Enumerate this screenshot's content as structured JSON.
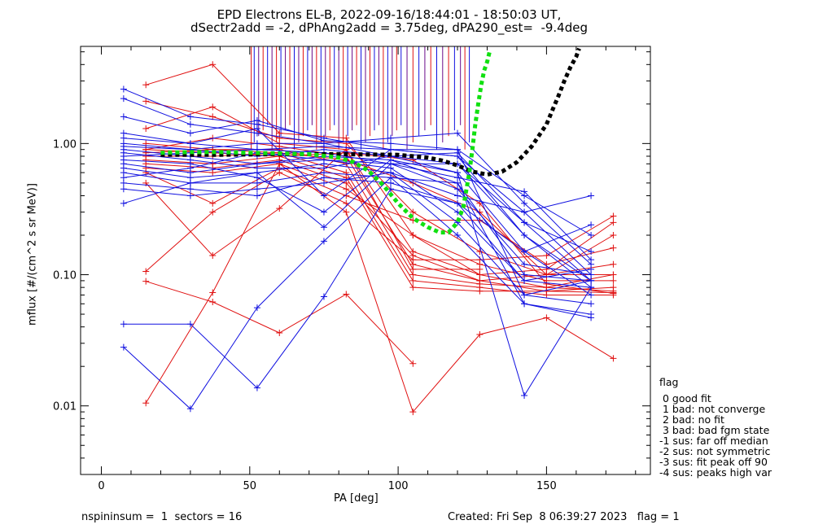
{
  "title_line1": "EPD Electrons EL-B, 2022-09-16/18:44:01 - 18:50:03 UT,",
  "title_line2": "dSectr2add = -2, dPhAng2add = 3.75deg, dPA290_est=  -9.4deg",
  "footer": {
    "left": "nspininsum =  1  sectors = 16",
    "right": "Created: Fri Sep  8 06:39:27 2023   flag = 1"
  },
  "legend": {
    "title": "flag",
    "items": [
      " 0 good fit",
      " 1 bad: not converge",
      " 2 bad: no fit",
      " 3 bad: bad fgm state",
      "-1 sus: far off median",
      "-2 sus: not symmetric",
      "-3 sus: fit peak off 90",
      "-4 sus: peaks high var"
    ]
  },
  "colors": {
    "blue": "#1010e0",
    "red": "#e01010",
    "green": "#10e010",
    "black": "#000000",
    "purple": "#6a0a8a"
  },
  "chart_data": {
    "type": "line",
    "xlabel": "PA [deg]",
    "ylabel": "mflux [#/(cm^2 s sr MeV)]",
    "xlim": [
      -7,
      185
    ],
    "ylim": [
      0.003,
      5.5
    ],
    "y_scale": "log",
    "xticks": [
      0,
      50,
      100,
      150
    ],
    "yticks": [
      0.01,
      0.1,
      1.0
    ],
    "ytick_labels": [
      "0.01",
      "0.10",
      "1.00"
    ],
    "pa_blue": [
      7.5,
      30,
      52.5,
      75,
      97.5,
      120,
      142.5,
      165
    ],
    "pa_red": [
      15,
      37.5,
      60,
      82.5,
      105,
      127.5,
      150,
      172.5
    ],
    "series_blue": [
      [
        2.6,
        1.6,
        1.4,
        1.1,
        0.9,
        0.8,
        0.3,
        0.1
      ],
      [
        2.2,
        1.4,
        1.2,
        1.0,
        0.8,
        0.7,
        0.25,
        0.09
      ],
      [
        1.6,
        1.2,
        1.5,
        1.05,
        1.0,
        0.9,
        0.4,
        0.2
      ],
      [
        1.2,
        1.0,
        0.9,
        0.95,
        0.9,
        0.8,
        0.2,
        0.08
      ],
      [
        1.0,
        0.9,
        0.8,
        0.9,
        0.8,
        0.6,
        0.15,
        0.07
      ],
      [
        0.9,
        0.8,
        0.7,
        0.8,
        0.75,
        0.5,
        0.1,
        0.09
      ],
      [
        0.8,
        0.85,
        0.9,
        0.85,
        0.7,
        0.45,
        0.12,
        0.1
      ],
      [
        0.7,
        0.6,
        0.7,
        0.75,
        0.65,
        0.3,
        0.09,
        0.08
      ],
      [
        0.65,
        0.55,
        0.6,
        0.7,
        0.6,
        0.25,
        0.07,
        0.06
      ],
      [
        0.6,
        0.5,
        0.5,
        0.6,
        0.55,
        0.2,
        0.06,
        0.05
      ],
      [
        0.5,
        0.45,
        0.4,
        0.55,
        0.5,
        0.35,
        0.15,
        0.24
      ],
      [
        0.45,
        0.4,
        0.45,
        0.5,
        0.6,
        0.4,
        0.3,
        0.4
      ],
      [
        0.35,
        0.5,
        0.6,
        0.23,
        0.7,
        0.55,
        0.43,
        0.13
      ],
      [
        1.1,
        1.0,
        1.3,
        0.4,
        0.9,
        0.9,
        0.07,
        0.09
      ],
      [
        0.75,
        0.7,
        0.55,
        0.3,
        0.75,
        0.6,
        0.012,
        0.08
      ],
      [
        0.042,
        0.042,
        0.0137,
        0.068,
        0.45,
        0.35,
        0.09,
        0.11
      ],
      [
        0.028,
        0.0095,
        0.056,
        0.18,
        0.55,
        0.5,
        0.06,
        0.047
      ],
      [
        0.85,
        0.75,
        0.65,
        0.65,
        0.8,
        0.85,
        0.25,
        0.15
      ],
      [
        0.95,
        0.9,
        1.0,
        1.0,
        1.1,
        1.2,
        0.35,
        0.12
      ],
      [
        0.55,
        0.65,
        0.85,
        0.75,
        0.7,
        0.7,
        0.2,
        0.09
      ]
    ],
    "series_red": [
      [
        2.8,
        4.0,
        1.2,
        1.1,
        0.2,
        0.12,
        0.09,
        0.09
      ],
      [
        2.1,
        1.6,
        1.1,
        1.0,
        0.3,
        0.15,
        0.1,
        0.12
      ],
      [
        1.3,
        1.9,
        1.0,
        0.9,
        0.15,
        0.1,
        0.08,
        0.1
      ],
      [
        0.9,
        1.1,
        0.95,
        0.8,
        0.12,
        0.09,
        0.075,
        0.08
      ],
      [
        0.85,
        0.9,
        0.9,
        0.7,
        0.1,
        0.085,
        0.08,
        0.075
      ],
      [
        0.8,
        0.8,
        0.85,
        0.6,
        0.09,
        0.08,
        0.07,
        0.07
      ],
      [
        0.75,
        0.7,
        0.8,
        0.55,
        0.08,
        0.075,
        0.075,
        0.073
      ],
      [
        0.7,
        0.65,
        0.75,
        0.5,
        0.14,
        0.09,
        0.1,
        0.2
      ],
      [
        0.65,
        0.6,
        0.7,
        0.45,
        0.2,
        0.1,
        0.11,
        0.25
      ],
      [
        0.6,
        0.35,
        0.65,
        0.4,
        0.26,
        0.26,
        0.12,
        0.16
      ],
      [
        0.106,
        0.3,
        0.6,
        0.35,
        0.13,
        0.13,
        0.14,
        0.28
      ],
      [
        0.089,
        0.062,
        0.036,
        0.071,
        0.021,
        null,
        null,
        null
      ],
      [
        0.0105,
        0.073,
        0.7,
        0.3,
        0.009,
        0.035,
        0.047,
        0.023
      ],
      [
        0.5,
        0.14,
        0.32,
        0.9,
        0.11,
        0.11,
        null,
        null
      ],
      [
        1.0,
        0.9,
        0.85,
        0.75,
        0.5,
        0.3,
        0.1,
        0.1
      ],
      [
        0.9,
        0.85,
        0.8,
        0.85,
        0.75,
        0.35,
        0.085,
        0.072
      ]
    ],
    "fit_green": {
      "x": [
        20,
        30,
        40,
        50,
        60,
        70,
        80,
        85,
        90,
        95,
        100,
        105,
        110,
        114,
        117,
        120,
        122,
        124,
        125,
        126,
        127,
        128,
        129,
        130,
        131
      ],
      "y": [
        0.85,
        0.86,
        0.86,
        0.85,
        0.84,
        0.83,
        0.78,
        0.72,
        0.62,
        0.48,
        0.35,
        0.27,
        0.23,
        0.21,
        0.21,
        0.25,
        0.33,
        0.6,
        0.9,
        1.4,
        2.0,
        2.8,
        3.6,
        4.2,
        5.2
      ]
    },
    "fit_black": {
      "x": [
        20,
        40,
        60,
        80,
        100,
        110,
        115,
        120,
        125,
        130,
        135,
        140,
        145,
        150,
        152,
        154,
        156,
        158,
        160,
        161
      ],
      "y": [
        0.82,
        0.82,
        0.83,
        0.83,
        0.82,
        0.78,
        0.74,
        0.68,
        0.61,
        0.58,
        0.61,
        0.72,
        0.95,
        1.4,
        1.8,
        2.3,
        3.0,
        3.8,
        4.6,
        5.3
      ]
    },
    "spikes_x": [
      50.5,
      51.5,
      53,
      54.5,
      56,
      57.5,
      59,
      60.5,
      62,
      63.5,
      65,
      66.5,
      68,
      69.5,
      71,
      72.5,
      74,
      75.5,
      77,
      78.5,
      80,
      81.5,
      83,
      84.5,
      86,
      87.5,
      89,
      90.5,
      92,
      93.5,
      95,
      96.5,
      98,
      99.5,
      101,
      103,
      105,
      107,
      109,
      111,
      113,
      115,
      117,
      119,
      121,
      122.5,
      124
    ]
  }
}
